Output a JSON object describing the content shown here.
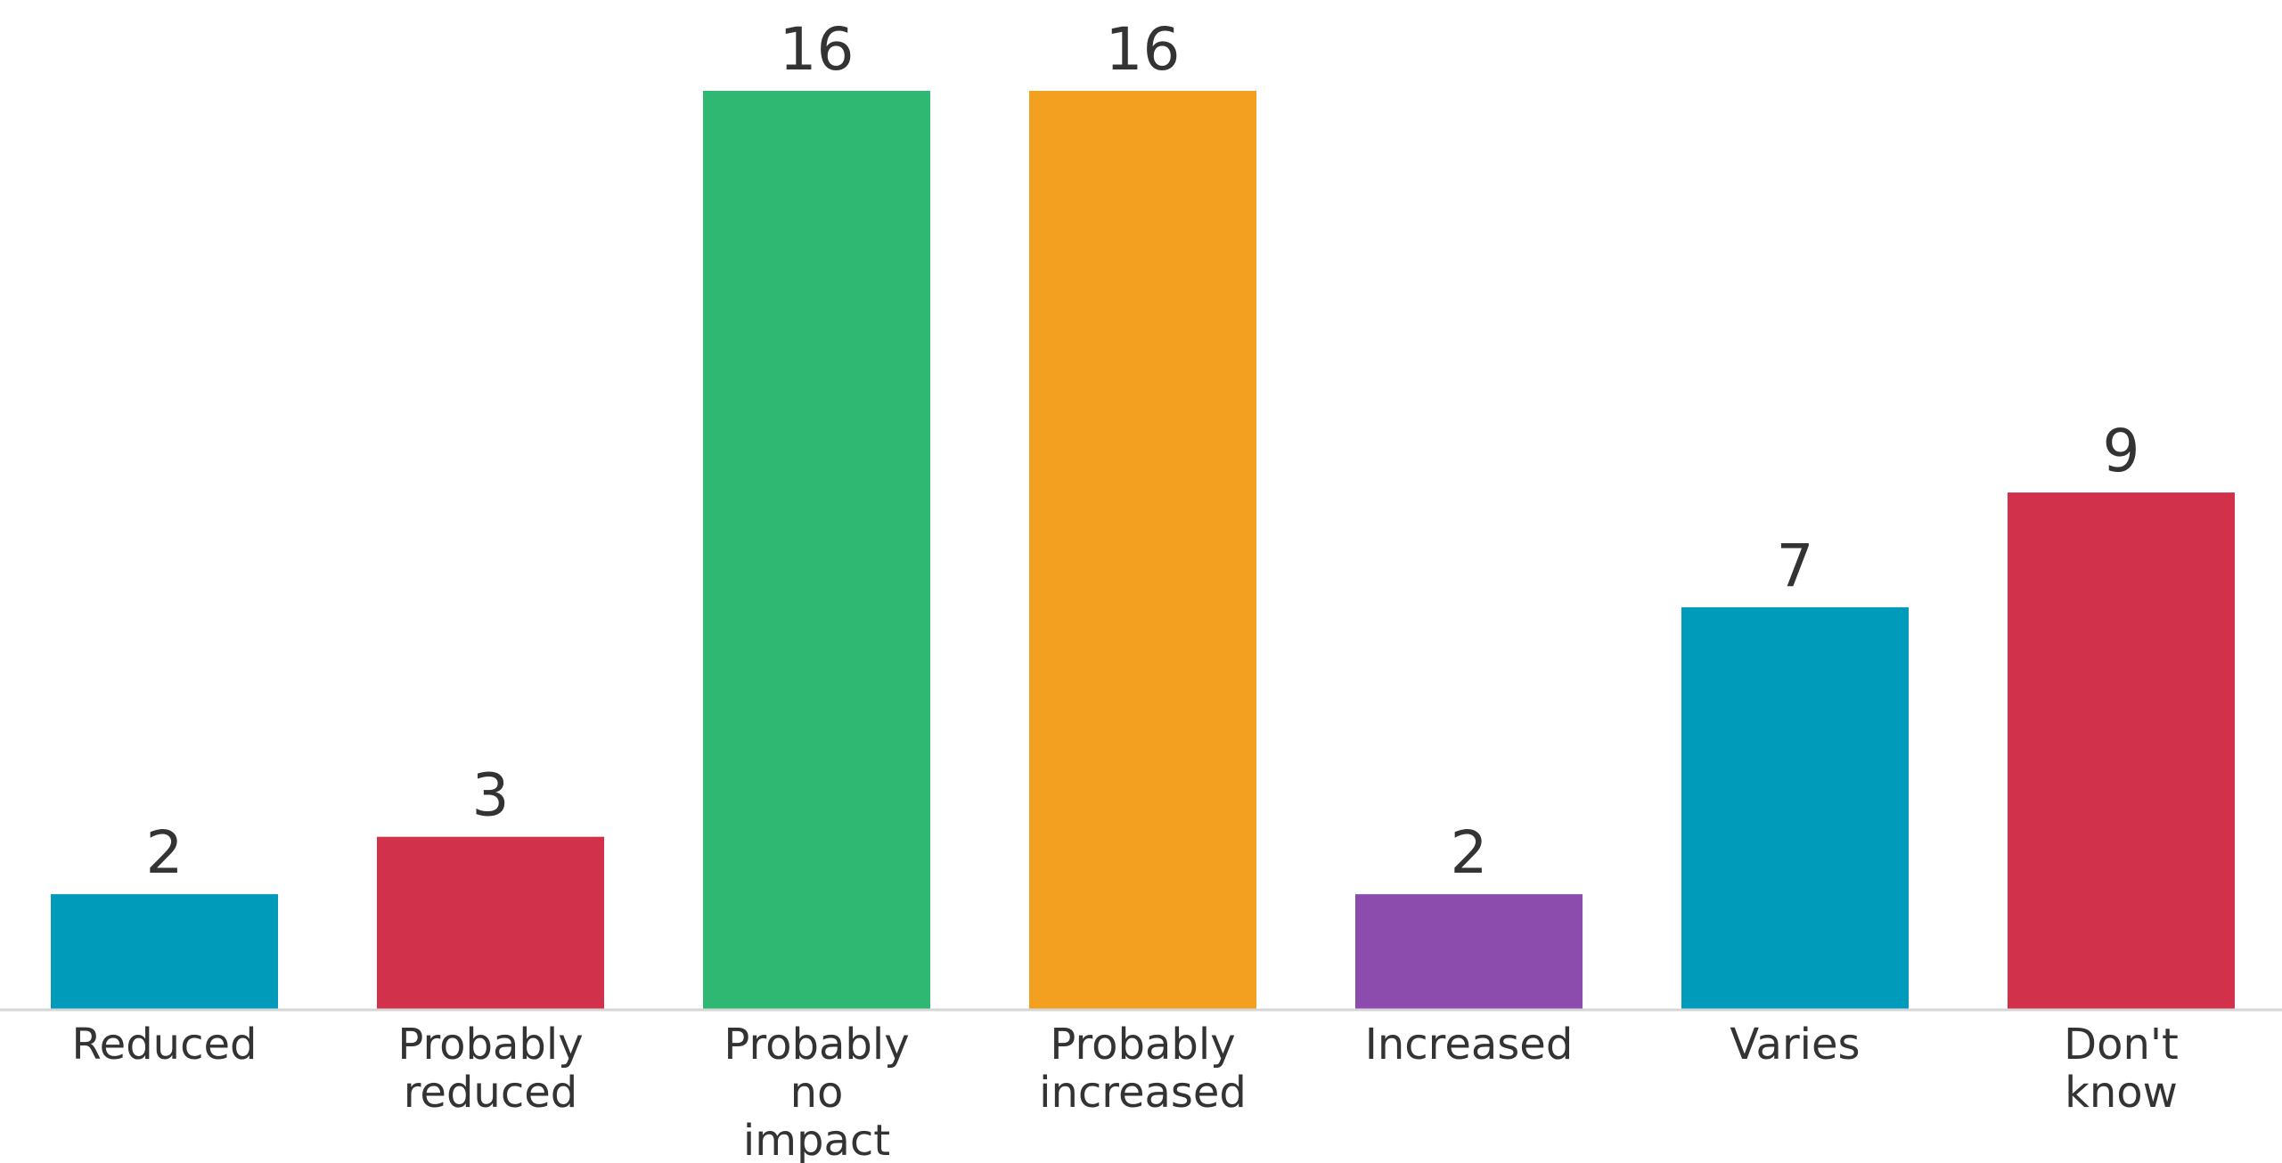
{
  "chart_data": {
    "type": "bar",
    "categories": [
      [
        "Reduced"
      ],
      [
        "Probably",
        "reduced"
      ],
      [
        "Probably",
        "no",
        "impact"
      ],
      [
        "Probably",
        "increased"
      ],
      [
        "Increased"
      ],
      [
        "Varies"
      ],
      [
        "Don't",
        "know"
      ]
    ],
    "values": [
      2,
      3,
      16,
      16,
      2,
      7,
      9
    ],
    "colors": [
      "#009BBB",
      "#D2314B",
      "#2EB872",
      "#F3A020",
      "#8C4CAE",
      "#009BBB",
      "#D2314B"
    ],
    "title": "",
    "xlabel": "",
    "ylabel": "",
    "ylim": [
      0,
      16
    ],
    "grid": false,
    "legend": "none",
    "data_labels": true
  }
}
